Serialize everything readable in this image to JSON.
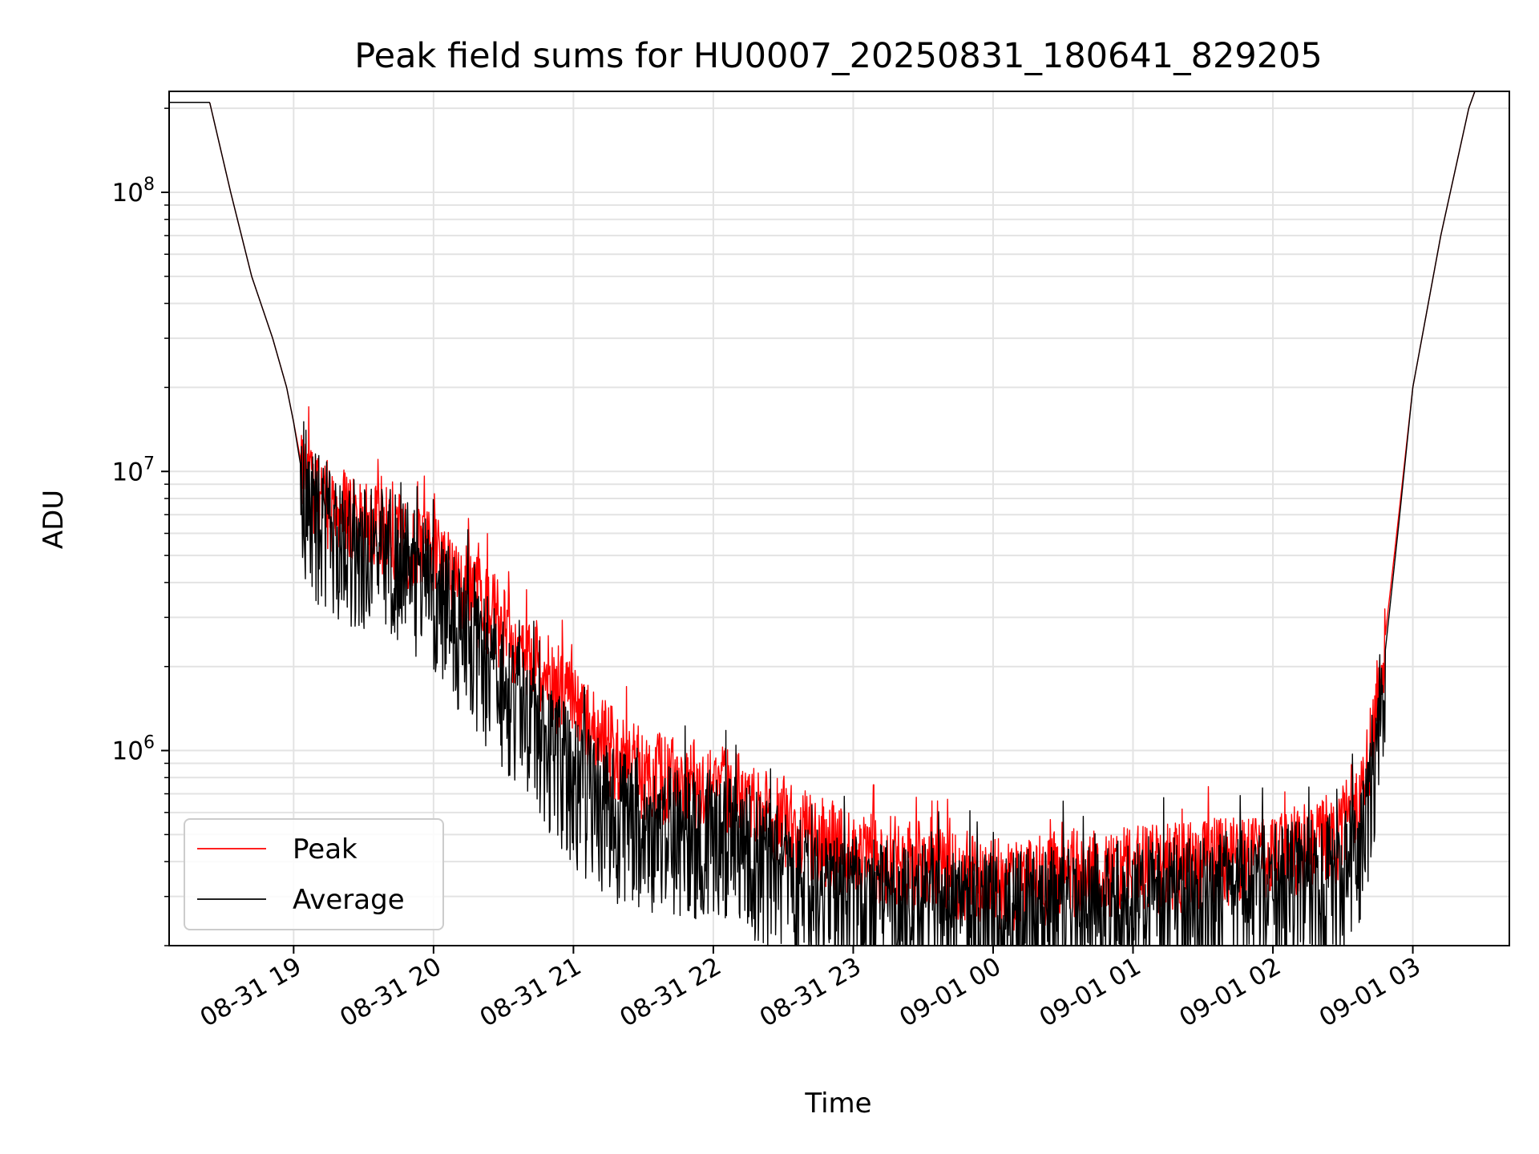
{
  "chart_data": {
    "type": "line",
    "title": "Peak field sums for HU0007_20250831_180641_829205",
    "xlabel": "Time",
    "ylabel": "ADU",
    "yscale": "log",
    "xlim_hours": [
      -0.89,
      8.69
    ],
    "ylim": [
      200000,
      230000000
    ],
    "grid": true,
    "legend_position": "lower-left",
    "x_ticks": [
      {
        "hour": 0,
        "label": "08-31 19"
      },
      {
        "hour": 1,
        "label": "08-31 20"
      },
      {
        "hour": 2,
        "label": "08-31 21"
      },
      {
        "hour": 3,
        "label": "08-31 22"
      },
      {
        "hour": 4,
        "label": "08-31 23"
      },
      {
        "hour": 5,
        "label": "09-01 00"
      },
      {
        "hour": 6,
        "label": "09-01 01"
      },
      {
        "hour": 7,
        "label": "09-01 02"
      },
      {
        "hour": 8,
        "label": "09-01 03"
      }
    ],
    "y_ticks": [
      {
        "value": 1000000,
        "base": "10",
        "exp": "6"
      },
      {
        "value": 10000000,
        "base": "10",
        "exp": "7"
      },
      {
        "value": 100000000,
        "base": "10",
        "exp": "8"
      }
    ],
    "time_hours": [
      -0.89,
      -0.6,
      -0.45,
      -0.3,
      -0.15,
      -0.05,
      0.0,
      0.05,
      0.1,
      0.2,
      0.4,
      0.6,
      0.8,
      1.0,
      1.2,
      1.4,
      1.6,
      1.8,
      2.0,
      2.2,
      2.4,
      2.6,
      2.8,
      3.0,
      3.2,
      3.4,
      3.6,
      3.8,
      4.0,
      4.3,
      4.6,
      4.9,
      5.1,
      5.4,
      5.7,
      6.0,
      6.3,
      6.6,
      6.9,
      7.2,
      7.4,
      7.5,
      7.6,
      7.7,
      7.8,
      7.9,
      8.0,
      8.2,
      8.4,
      8.45,
      8.69
    ],
    "series": [
      {
        "name": "Peak",
        "color": "#ff0000",
        "noise_down": 0.18,
        "noise_up": 0.15,
        "values": [
          210000000,
          210000000,
          100000000,
          50000000,
          30000000,
          20000000,
          15000000,
          11000000,
          9500000,
          8000000,
          7000000,
          6500000,
          5800000,
          5000000,
          4000000,
          3200000,
          2500000,
          1900000,
          1500000,
          1100000,
          900000,
          820000,
          790000,
          750000,
          700000,
          600000,
          520000,
          480000,
          440000,
          420000,
          380000,
          350000,
          340000,
          360000,
          380000,
          380000,
          390000,
          410000,
          430000,
          450000,
          480000,
          530000,
          650000,
          1000000,
          2500000,
          7000000,
          20000000,
          70000000,
          200000000,
          235000000,
          235000000
        ]
      },
      {
        "name": "Average",
        "color": "#000000",
        "noise_down": 0.35,
        "noise_up": 0.2,
        "values": [
          210000000,
          210000000,
          100000000,
          50000000,
          30000000,
          20000000,
          15000000,
          10500000,
          8500000,
          7000000,
          6200000,
          5600000,
          5000000,
          4000000,
          3000000,
          2200000,
          1600000,
          1150000,
          850000,
          680000,
          600000,
          560000,
          560000,
          550000,
          500000,
          420000,
          360000,
          330000,
          310000,
          300000,
          290000,
          280000,
          275000,
          285000,
          300000,
          300000,
          310000,
          320000,
          340000,
          360000,
          380000,
          400000,
          450000,
          800000,
          2200000,
          6500000,
          20000000,
          70000000,
          200000000,
          235000000,
          235000000
        ]
      }
    ]
  }
}
